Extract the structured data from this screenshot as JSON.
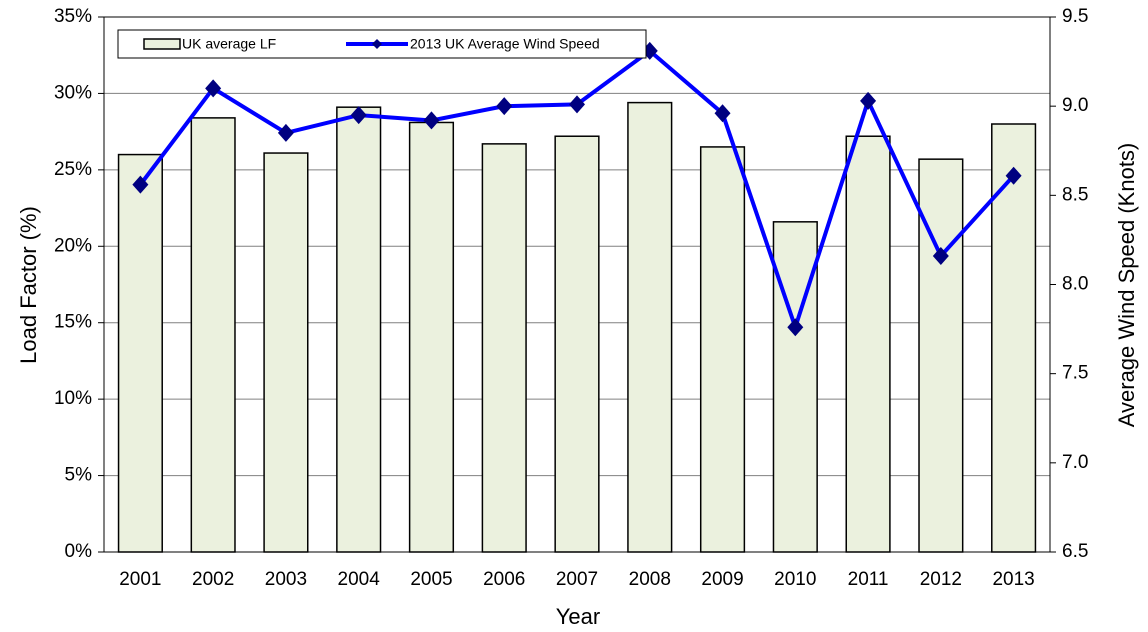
{
  "chart_data": {
    "type": "bar-line",
    "x_label": "Year",
    "y_label": "Load Factor (%)",
    "y2_label": "Average Wind Speed (Knots)",
    "categories": [
      "2001",
      "2002",
      "2003",
      "2004",
      "2005",
      "2006",
      "2007",
      "2008",
      "2009",
      "2010",
      "2011",
      "2012",
      "2013"
    ],
    "series": [
      {
        "name": "UK average LF",
        "type": "bar",
        "color": "#ebf1de",
        "values": [
          26.0,
          28.4,
          26.1,
          29.1,
          28.1,
          26.7,
          27.2,
          29.4,
          26.5,
          21.6,
          27.2,
          25.7,
          28.0
        ]
      },
      {
        "name": "2013 UK Average Wind Speed",
        "type": "line",
        "axis": "y2",
        "color": "#0000ff",
        "marker_color": "#000080",
        "values": [
          8.56,
          9.1,
          8.85,
          8.95,
          8.92,
          9.0,
          9.01,
          9.31,
          8.96,
          7.76,
          9.03,
          8.16,
          8.61
        ]
      }
    ],
    "ylim": [
      0,
      35
    ],
    "yticks": [
      {
        "value": 0,
        "label": "0%"
      },
      {
        "value": 5,
        "label": "5%"
      },
      {
        "value": 10,
        "label": "10%"
      },
      {
        "value": 15,
        "label": "15%"
      },
      {
        "value": 20,
        "label": "20%"
      },
      {
        "value": 25,
        "label": "25%"
      },
      {
        "value": 30,
        "label": "30%"
      },
      {
        "value": 35,
        "label": "35%"
      }
    ],
    "y2lim": [
      6.5,
      9.5
    ],
    "y2ticks": [
      6.5,
      {
        "value": 7,
        "label": "7.0"
      },
      7.5,
      {
        "value": 8,
        "label": "8.0"
      },
      8.5,
      {
        "value": 9,
        "label": "9.0"
      },
      9.5
    ],
    "grid": true,
    "legend": "top-left"
  }
}
